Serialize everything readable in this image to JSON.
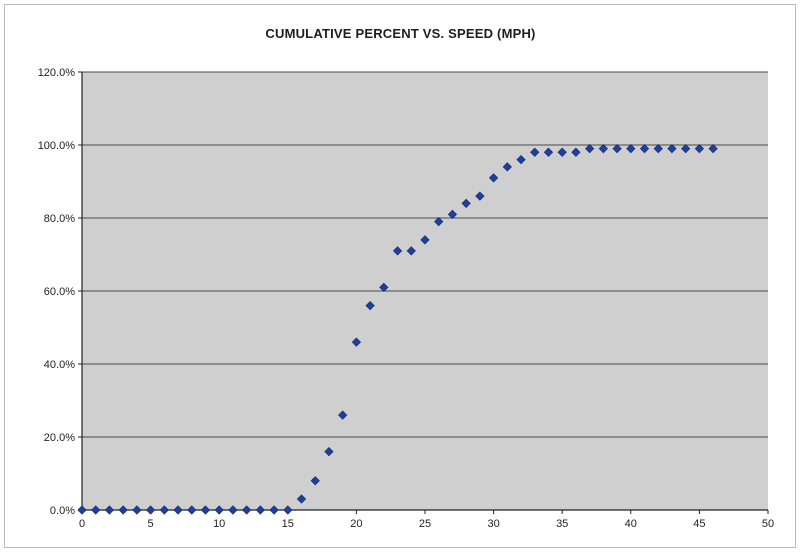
{
  "chart_data": {
    "type": "scatter",
    "title": "CUMULATIVE PERCENT VS. SPEED (MPH)",
    "xlabel": "",
    "ylabel": "",
    "xlim": [
      0,
      50
    ],
    "ylim": [
      0,
      120
    ],
    "x_ticks": [
      0,
      5,
      10,
      15,
      20,
      25,
      30,
      35,
      40,
      45,
      50
    ],
    "y_ticks": [
      0,
      20,
      40,
      60,
      80,
      100,
      120
    ],
    "y_tick_labels": [
      "0.0%",
      "20.0%",
      "40.0%",
      "60.0%",
      "80.0%",
      "100.0%",
      "120.0%"
    ],
    "grid": "horizontal",
    "legend": "none",
    "colors": {
      "marker": "#1f3f9f",
      "plot_background": "#cfcfcf",
      "gridline": "#4a4a4a",
      "axis": "#222222"
    },
    "series": [
      {
        "x": [
          0,
          1,
          2,
          3,
          4,
          5,
          6,
          7,
          8,
          9,
          10,
          11,
          12,
          13,
          14,
          15,
          16,
          17,
          18,
          19,
          20,
          21,
          22,
          23,
          24,
          25,
          26,
          27,
          28,
          29,
          30,
          31,
          32,
          33,
          34,
          35,
          36,
          37,
          38,
          39,
          40,
          41,
          42,
          43,
          44,
          45,
          46
        ],
        "y": [
          0,
          0,
          0,
          0,
          0,
          0,
          0,
          0,
          0,
          0,
          0,
          0,
          0,
          0,
          0,
          0,
          3,
          8,
          16,
          26,
          46,
          56,
          61,
          71,
          71,
          74,
          79,
          81,
          84,
          86,
          91,
          94,
          96,
          98,
          98,
          98,
          98,
          99,
          99,
          99,
          99,
          99,
          99,
          99,
          99,
          99,
          99
        ]
      }
    ]
  }
}
